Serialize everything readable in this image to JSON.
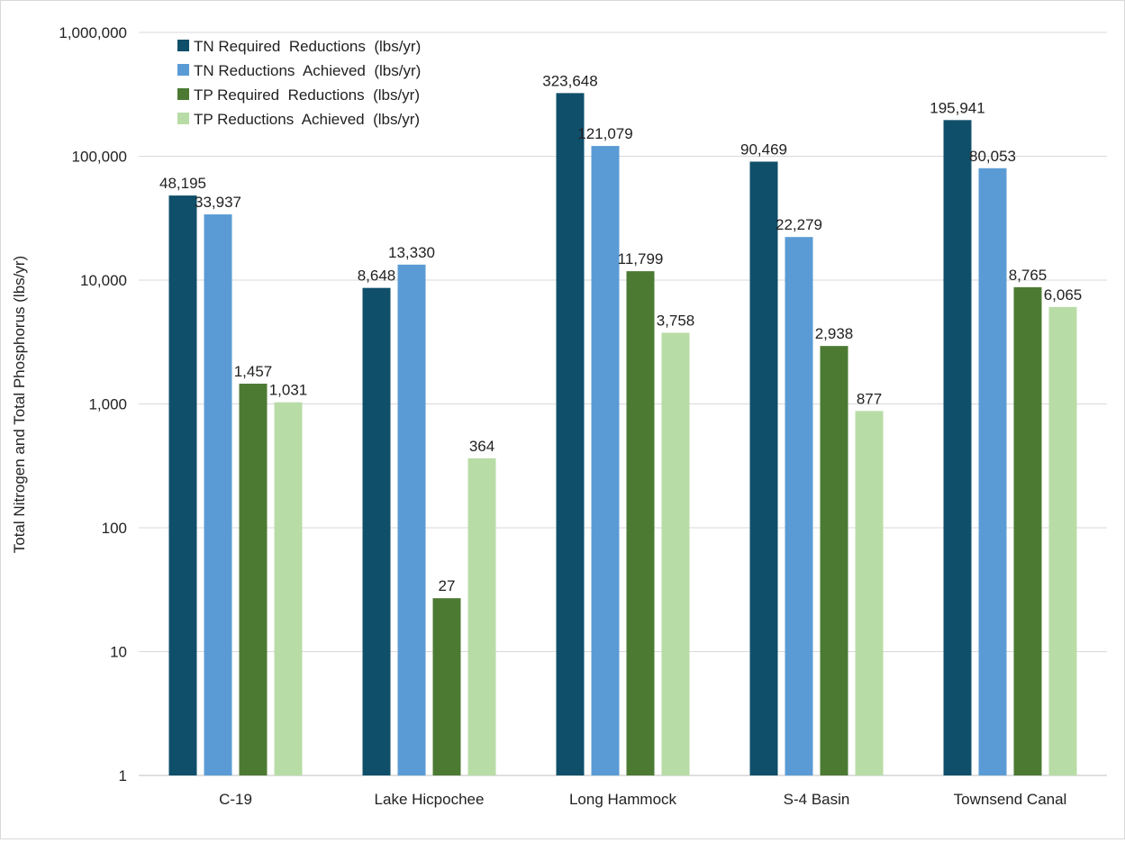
{
  "chart_data": {
    "type": "bar",
    "title": "",
    "xlabel": "",
    "ylabel": "Total Nitrogen and Total Phosphorus (lbs/yr)",
    "yscale": "log",
    "ylim": [
      1,
      1000000
    ],
    "yticks": [
      1,
      10,
      100,
      1000,
      10000,
      100000,
      1000000
    ],
    "ytick_labels": [
      "1",
      "10",
      "100",
      "1,000",
      "10,000",
      "100,000",
      "1,000,000"
    ],
    "grid": true,
    "legend_position": "top-left",
    "categories": [
      "C-19",
      "Lake Hicpochee",
      "Long Hammock",
      "S-4 Basin",
      "Townsend Canal"
    ],
    "series": [
      {
        "name": "TN Required  Reductions  (lbs/yr)",
        "color": "#0f4f6a",
        "values": [
          48195,
          8648,
          323648,
          90469,
          195941
        ],
        "labels": [
          "48,195",
          "8,648",
          "323,648",
          "90,469",
          "195,941"
        ]
      },
      {
        "name": "TN Reductions  Achieved  (lbs/yr)",
        "color": "#5b9bd5",
        "values": [
          33937,
          13330,
          121079,
          22279,
          80053
        ],
        "labels": [
          "33,937",
          "13,330",
          "121,079",
          "22,279",
          "80,053"
        ]
      },
      {
        "name": "TP Required  Reductions  (lbs/yr)",
        "color": "#4c7a33",
        "values": [
          1457,
          27,
          11799,
          2938,
          8765
        ],
        "labels": [
          "1,457",
          "27",
          "11,799",
          "2,938",
          "8,765"
        ]
      },
      {
        "name": "TP Reductions  Achieved  (lbs/yr)",
        "color": "#b8dca6",
        "values": [
          1031,
          364,
          3758,
          877,
          6065
        ],
        "labels": [
          "1,031",
          "364",
          "3,758",
          "877",
          "6,065"
        ]
      }
    ]
  }
}
